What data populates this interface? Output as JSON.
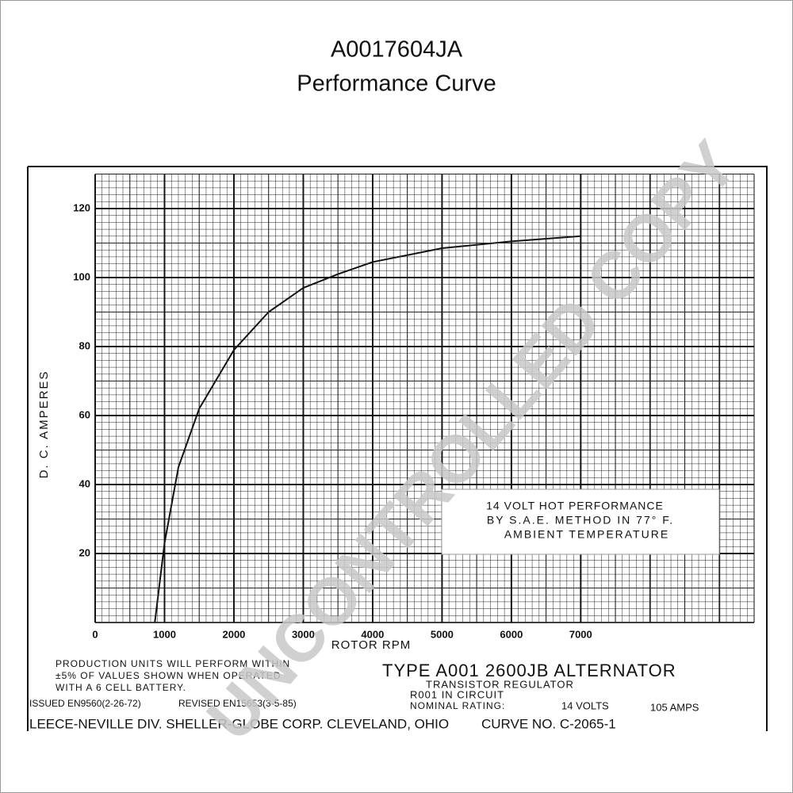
{
  "chart_data": {
    "type": "line",
    "title": "A0017604JA",
    "subtitle": "Performance Curve",
    "x_label": "ROTOR RPM",
    "y_label": "D. C. AMPERES",
    "x": [
      860,
      1000,
      1200,
      1500,
      2000,
      2500,
      3000,
      3500,
      4000,
      5000,
      6000,
      7000
    ],
    "series": [
      {
        "name": "14 VOLT HOT PERFORMANCE",
        "color": "#111111",
        "values": [
          0,
          23,
          45,
          62,
          79,
          90,
          97,
          101,
          104.5,
          108.5,
          110.5,
          112
        ]
      }
    ],
    "xlim": [
      0,
      9500
    ],
    "xticks": [
      0,
      1000,
      2000,
      3000,
      4000,
      5000,
      6000,
      7000
    ],
    "ylim": [
      0,
      130
    ],
    "yticks": [
      20,
      40,
      60,
      80,
      100,
      120
    ],
    "grid": true,
    "annotation": [
      "14 VOLT HOT PERFORMANCE",
      "BY S.A.E. METHOD IN 77° F.",
      "AMBIENT TEMPERATURE"
    ],
    "notes": [
      "PRODUCTION UNITS WILL PERFORM WITHIN",
      "±5% OF VALUES SHOWN WHEN OPERATED",
      "WITH A 6 CELL BATTERY."
    ],
    "issued": "ISSUED EN9560(2-26-72)",
    "revised": "REVISED EN15653(3-5-85)",
    "type_line": "TYPE A001 2600JB ALTERNATOR",
    "regulator": "TRANSISTOR REGULATOR",
    "circuit": "R001 IN CIRCUIT",
    "rating": "NOMINAL RATING:",
    "volts": "14 VOLTS",
    "amps": "105 AMPS",
    "company": "LEECE-NEVILLE DIV. SHELLER-GLOBE CORP. CLEVELAND, OHIO",
    "curve_no": "CURVE NO. C-2065-1",
    "watermark": "UNCONTROLLED COPY"
  }
}
